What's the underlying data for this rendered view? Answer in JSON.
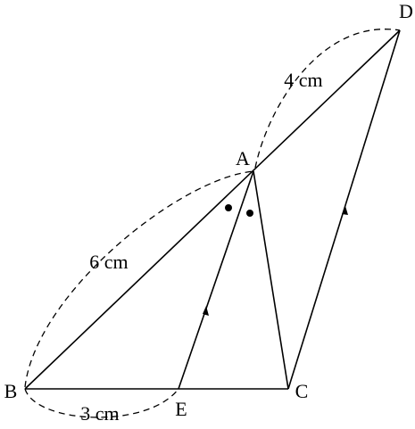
{
  "points": [
    "A",
    "B",
    "C",
    "D",
    "E"
  ],
  "measurements": {
    "AD": "4 cm",
    "AB": "6 cm",
    "BE": "3 cm"
  }
}
